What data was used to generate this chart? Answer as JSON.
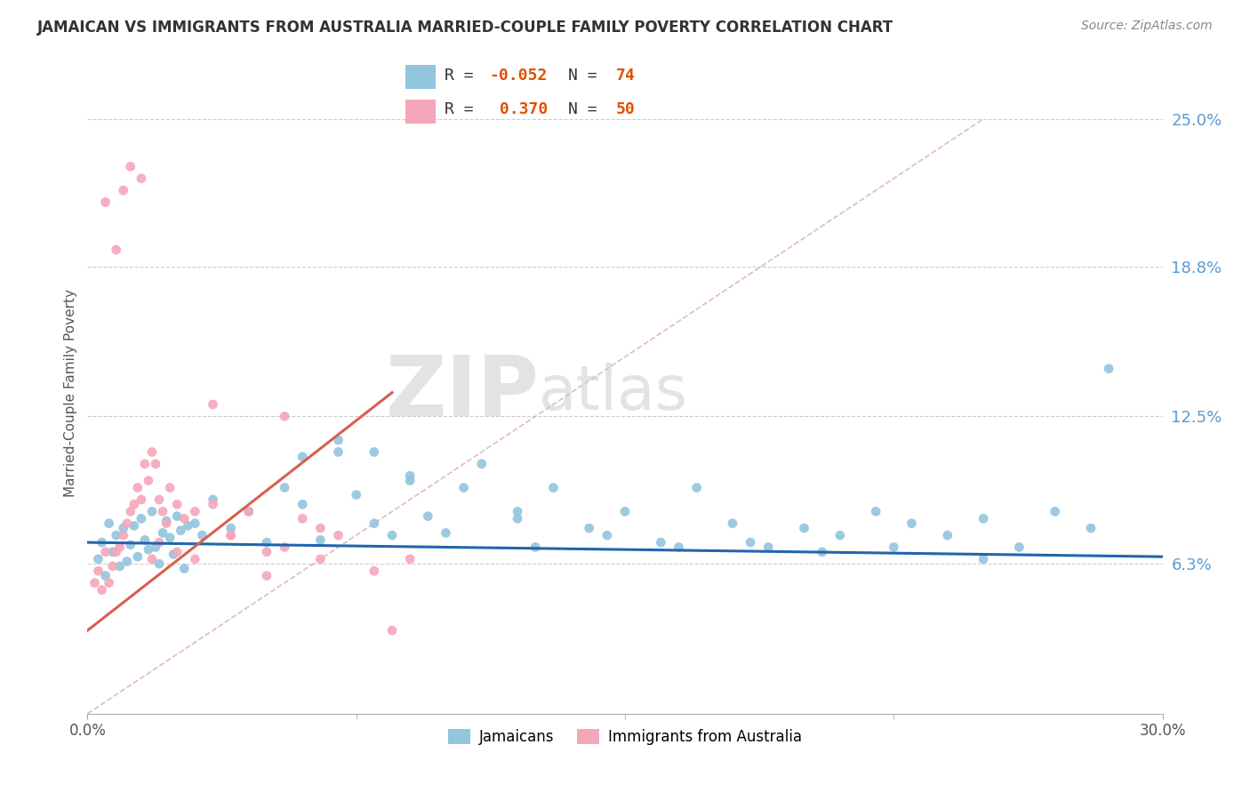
{
  "title": "JAMAICAN VS IMMIGRANTS FROM AUSTRALIA MARRIED-COUPLE FAMILY POVERTY CORRELATION CHART",
  "source": "Source: ZipAtlas.com",
  "ylabel": "Married-Couple Family Poverty",
  "xmin": 0.0,
  "xmax": 30.0,
  "ymin": 0.0,
  "ymax": 27.0,
  "ytick_values": [
    6.3,
    12.5,
    18.8,
    25.0
  ],
  "ytick_labels": [
    "6.3%",
    "12.5%",
    "18.8%",
    "25.0%"
  ],
  "xtick_values": [
    0.0,
    30.0
  ],
  "xtick_labels": [
    "0.0%",
    "30.0%"
  ],
  "legend_labels": [
    "Jamaicans",
    "Immigrants from Australia"
  ],
  "r_blue": -0.052,
  "n_blue": 74,
  "r_pink": 0.37,
  "n_pink": 50,
  "color_blue": "#92c5de",
  "color_pink": "#f4a7b9",
  "color_blue_line": "#2166ac",
  "color_pink_line": "#d6604d",
  "color_diag": "#f4a7b9",
  "watermark_zip": "ZIP",
  "watermark_atlas": "atlas",
  "blue_line_x": [
    0.0,
    30.0
  ],
  "blue_line_y": [
    7.2,
    6.6
  ],
  "pink_line_x": [
    0.0,
    8.5
  ],
  "pink_line_y": [
    3.5,
    13.5
  ],
  "diag_line_x": [
    0.0,
    25.0
  ],
  "diag_line_y": [
    0.0,
    25.0
  ],
  "blue_x": [
    0.3,
    0.4,
    0.5,
    0.6,
    0.7,
    0.8,
    0.9,
    1.0,
    1.1,
    1.2,
    1.3,
    1.4,
    1.5,
    1.6,
    1.7,
    1.8,
    1.9,
    2.0,
    2.1,
    2.2,
    2.3,
    2.4,
    2.5,
    2.6,
    2.7,
    2.8,
    3.0,
    3.2,
    3.5,
    4.0,
    4.5,
    5.0,
    5.5,
    6.0,
    6.5,
    7.0,
    7.5,
    8.0,
    8.5,
    9.0,
    9.5,
    10.0,
    11.0,
    12.0,
    12.5,
    13.0,
    14.0,
    15.0,
    16.0,
    17.0,
    18.0,
    19.0,
    20.0,
    21.0,
    22.0,
    23.0,
    24.0,
    25.0,
    26.0,
    27.0,
    28.0,
    6.0,
    7.0,
    8.0,
    9.0,
    10.5,
    12.0,
    14.5,
    16.5,
    18.5,
    20.5,
    22.5,
    25.0,
    28.5
  ],
  "blue_y": [
    6.5,
    7.2,
    5.8,
    8.0,
    6.8,
    7.5,
    6.2,
    7.8,
    6.4,
    7.1,
    7.9,
    6.6,
    8.2,
    7.3,
    6.9,
    8.5,
    7.0,
    6.3,
    7.6,
    8.1,
    7.4,
    6.7,
    8.3,
    7.7,
    6.1,
    7.9,
    8.0,
    7.5,
    9.0,
    7.8,
    8.5,
    7.2,
    9.5,
    8.8,
    7.3,
    11.0,
    9.2,
    8.0,
    7.5,
    9.8,
    8.3,
    7.6,
    10.5,
    8.2,
    7.0,
    9.5,
    7.8,
    8.5,
    7.2,
    9.5,
    8.0,
    7.0,
    7.8,
    7.5,
    8.5,
    8.0,
    7.5,
    8.2,
    7.0,
    8.5,
    7.8,
    10.8,
    11.5,
    11.0,
    10.0,
    9.5,
    8.5,
    7.5,
    7.0,
    7.2,
    6.8,
    7.0,
    6.5,
    14.5
  ],
  "pink_x": [
    0.2,
    0.3,
    0.4,
    0.5,
    0.6,
    0.7,
    0.8,
    0.9,
    1.0,
    1.1,
    1.2,
    1.3,
    1.4,
    1.5,
    1.6,
    1.7,
    1.8,
    1.9,
    2.0,
    2.1,
    2.2,
    2.3,
    2.5,
    2.7,
    3.0,
    3.5,
    4.0,
    4.5,
    5.0,
    5.5,
    6.0,
    6.5,
    7.0,
    0.5,
    0.8,
    1.0,
    1.2,
    1.5,
    1.8,
    2.0,
    2.5,
    3.0,
    4.0,
    5.0,
    6.5,
    8.0,
    9.0,
    3.5,
    5.5,
    8.5
  ],
  "pink_y": [
    5.5,
    6.0,
    5.2,
    6.8,
    5.5,
    6.2,
    6.8,
    7.0,
    7.5,
    8.0,
    8.5,
    8.8,
    9.5,
    9.0,
    10.5,
    9.8,
    11.0,
    10.5,
    9.0,
    8.5,
    8.0,
    9.5,
    8.8,
    8.2,
    8.5,
    8.8,
    7.5,
    8.5,
    6.8,
    7.0,
    8.2,
    7.8,
    7.5,
    21.5,
    19.5,
    22.0,
    23.0,
    22.5,
    6.5,
    7.2,
    6.8,
    6.5,
    7.5,
    5.8,
    6.5,
    6.0,
    6.5,
    13.0,
    12.5,
    3.5
  ]
}
